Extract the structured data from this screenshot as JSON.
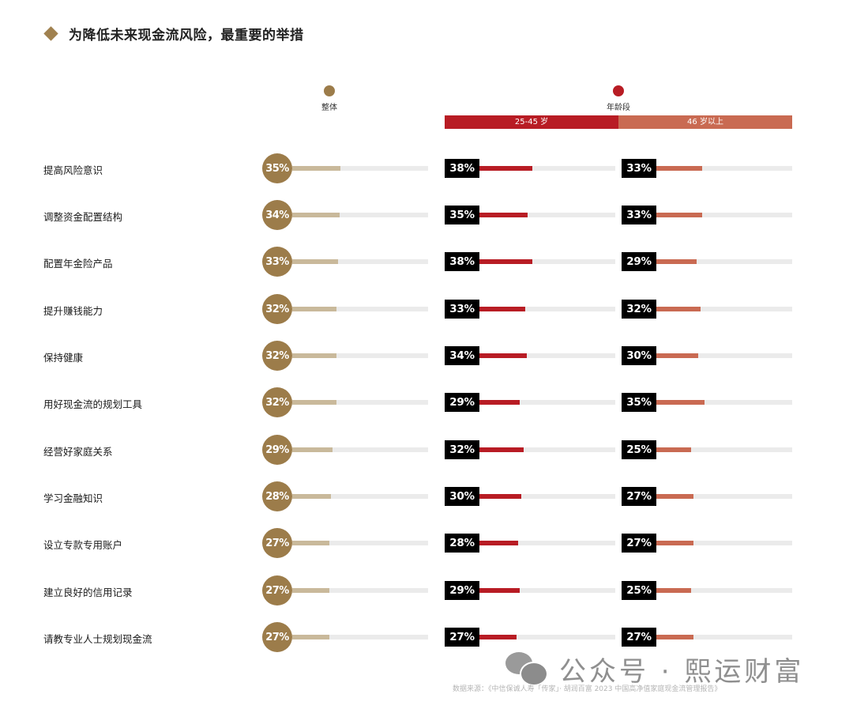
{
  "title": "为降低未来现金流风险，最重要的举措",
  "colors": {
    "overall_circle": "#9c7c4a",
    "overall_bar": "#c9b99b",
    "age_25_45": "#b81c24",
    "age_46_plus": "#c96a52",
    "track": "#ebebeb",
    "label_box": "#000000"
  },
  "legend": {
    "overall": {
      "label": "整体",
      "color": "#9c7c4a"
    },
    "age": {
      "label": "年龄段",
      "color": "#b81c24"
    },
    "age_groups": [
      {
        "label": "25-45 岁",
        "color": "#b81c24"
      },
      {
        "label": "46 岁以上",
        "color": "#c96a52"
      }
    ]
  },
  "rows": [
    {
      "label": "提高风险意识",
      "overall": "35%",
      "age_25_45": "38%",
      "age_46_plus": "33%"
    },
    {
      "label": "调整资金配置结构",
      "overall": "34%",
      "age_25_45": "35%",
      "age_46_plus": "33%"
    },
    {
      "label": "配置年金险产品",
      "overall": "33%",
      "age_25_45": "38%",
      "age_46_plus": "29%"
    },
    {
      "label": "提升赚钱能力",
      "overall": "32%",
      "age_25_45": "33%",
      "age_46_plus": "32%"
    },
    {
      "label": "保持健康",
      "overall": "32%",
      "age_25_45": "34%",
      "age_46_plus": "30%"
    },
    {
      "label": "用好现金流的规划工具",
      "overall": "32%",
      "age_25_45": "29%",
      "age_46_plus": "35%"
    },
    {
      "label": "经营好家庭关系",
      "overall": "29%",
      "age_25_45": "32%",
      "age_46_plus": "25%"
    },
    {
      "label": "学习金融知识",
      "overall": "28%",
      "age_25_45": "30%",
      "age_46_plus": "27%"
    },
    {
      "label": "设立专款专用账户",
      "overall": "27%",
      "age_25_45": "28%",
      "age_46_plus": "27%"
    },
    {
      "label": "建立良好的信用记录",
      "overall": "27%",
      "age_25_45": "29%",
      "age_46_plus": "25%"
    },
    {
      "label": "请教专业人士规划现金流",
      "overall": "27%",
      "age_25_45": "27%",
      "age_46_plus": "27%"
    }
  ],
  "watermark": "公众号 · 熙运财富",
  "source": "数据来源：《中信保诚人寿「传家」· 胡润百富 2023 中国高净值家庭现金流管理报告》",
  "chart_data": {
    "type": "bar",
    "orientation": "horizontal",
    "title": "为降低未来现金流风险，最重要的举措",
    "categories": [
      "提高风险意识",
      "调整资金配置结构",
      "配置年金险产品",
      "提升赚钱能力",
      "保持健康",
      "用好现金流的规划工具",
      "经营好家庭关系",
      "学习金融知识",
      "设立专款专用账户",
      "建立良好的信用记录",
      "请教专业人士规划现金流"
    ],
    "series": [
      {
        "name": "整体",
        "values": [
          35,
          34,
          33,
          32,
          32,
          32,
          29,
          28,
          27,
          27,
          27
        ]
      },
      {
        "name": "25-45 岁",
        "values": [
          38,
          35,
          38,
          33,
          34,
          29,
          32,
          30,
          28,
          29,
          27
        ]
      },
      {
        "name": "46 岁以上",
        "values": [
          33,
          33,
          29,
          32,
          30,
          35,
          25,
          27,
          27,
          25,
          27
        ]
      }
    ],
    "unit": "%",
    "legend": [
      "整体",
      "年龄段: 25-45 岁",
      "年龄段: 46 岁以上"
    ],
    "xlabel": "",
    "ylabel": "",
    "grid": false,
    "source": "数据来源：《中信保诚人寿「传家」· 胡润百富 2023 中国高净值家庭现金流管理报告》"
  }
}
